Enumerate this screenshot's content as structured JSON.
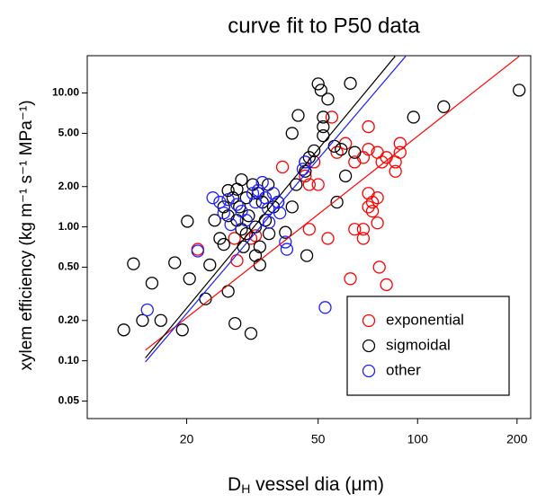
{
  "chart_data": {
    "type": "scatter",
    "title": "curve fit to P50 data",
    "xlabel": [
      "D",
      "H",
      " vessel dia (μm)"
    ],
    "ylabel": "xylem efficiency (kg  m⁻¹  s⁻¹  MPa⁻¹)",
    "xscale": "log",
    "yscale": "log",
    "xlim": [
      10,
      220
    ],
    "ylim": [
      0.037,
      19
    ],
    "xticks": [
      20,
      50,
      100,
      200
    ],
    "yticks": [
      {
        "value": 10,
        "label": "10.00"
      },
      {
        "value": 5,
        "label": "5.00"
      },
      {
        "value": 2,
        "label": "2.00"
      },
      {
        "value": 1,
        "label": "1.00"
      },
      {
        "value": 0.5,
        "label": "0.50"
      },
      {
        "value": 0.2,
        "label": "0.20"
      },
      {
        "value": 0.1,
        "label": "0.10"
      },
      {
        "value": 0.05,
        "label": "0.05"
      }
    ],
    "legend": "lower right",
    "series": [
      {
        "name": "exponential",
        "color": "#ff0000",
        "x": [
          21.6,
          27.9,
          28.4,
          31.3,
          32.3,
          39,
          45.7,
          47,
          47,
          48.6,
          50,
          53.5,
          55,
          57,
          60.5,
          62.6,
          64.5,
          64.5,
          68.5,
          68.5,
          71,
          71,
          71,
          73,
          73,
          75.6,
          75.6,
          75.6,
          78,
          80.5,
          68.5,
          85.7,
          85.7,
          88.5,
          88.5,
          76.6,
          80.5,
          71
        ],
        "values": [
          0.68,
          0.82,
          0.56,
          0.82,
          0.86,
          2.8,
          2.4,
          2.07,
          0.96,
          3.05,
          2.07,
          0.82,
          6.6,
          3.6,
          4.2,
          0.41,
          3.05,
          0.96,
          0.96,
          3.3,
          3.8,
          1.41,
          1.78,
          1.53,
          1.31,
          1.65,
          3.6,
          1.07,
          3.05,
          3.3,
          0.82,
          3.05,
          2.6,
          3.6,
          4.2,
          0.5,
          0.37,
          5.6
        ],
        "fit": {
          "x": [
            15,
            203
          ],
          "y": [
            0.12,
            18.8
          ]
        }
      },
      {
        "name": "sigmoidal",
        "color": "#000000",
        "x": [
          12.9,
          13.8,
          14.7,
          15.7,
          16.7,
          18.4,
          19.4,
          20.1,
          20.4,
          22.8,
          23.5,
          24.3,
          25.2,
          25.9,
          25.9,
          26.7,
          26.7,
          26.7,
          27.6,
          28,
          28.4,
          28.4,
          28.9,
          29.3,
          29.3,
          29.7,
          30.3,
          30.3,
          30.8,
          31.3,
          31.7,
          32.3,
          32.3,
          32.9,
          33.3,
          33.3,
          33.9,
          34.6,
          35.3,
          35.5,
          36.6,
          37.8,
          39.8,
          41.7,
          42.9,
          41.7,
          43.5,
          45.7,
          45.7,
          46.2,
          47,
          48.6,
          50,
          51,
          51.8,
          51.8,
          51.8,
          53.5,
          56,
          57,
          58.7,
          60.5,
          62.6,
          64.5,
          97.2,
          120,
          203
        ],
        "values": [
          0.17,
          0.53,
          0.2,
          0.38,
          0.2,
          0.54,
          0.17,
          1.1,
          0.41,
          0.29,
          0.52,
          1.12,
          0.82,
          0.74,
          1.41,
          1.87,
          1.21,
          0.33,
          1.65,
          0.19,
          1.91,
          1.12,
          1.41,
          2.25,
          0.96,
          0.71,
          1.65,
          0.89,
          1.21,
          0.16,
          2.07,
          1.0,
          0.61,
          1.78,
          0.71,
          0.52,
          1.53,
          1.12,
          2.07,
          0.89,
          1.41,
          1.53,
          0.91,
          1.41,
          2.07,
          5.0,
          6.8,
          3.05,
          2.6,
          0.61,
          3.3,
          3.7,
          11.7,
          10.5,
          6.6,
          5.6,
          4.8,
          9.0,
          4.0,
          1.53,
          3.8,
          2.4,
          11.8,
          3.6,
          6.6,
          7.9,
          10.5
        ],
        "fit": {
          "x": [
            15,
            85.5
          ],
          "y": [
            0.105,
            18.8
          ]
        }
      },
      {
        "name": "other",
        "color": "#1f1fff",
        "x": [
          15.2,
          21.6,
          24,
          25.2,
          25.9,
          26.7,
          27.2,
          28.4,
          29.3,
          31.7,
          32.3,
          32.9,
          33.9,
          34.6,
          35.3,
          35.5,
          36.6,
          37.8,
          38.3,
          39.8,
          40.2,
          45.7,
          45,
          52.5,
          30.3
        ],
        "values": [
          0.24,
          0.66,
          1.65,
          1.53,
          1.27,
          1.6,
          1.04,
          1.47,
          1.31,
          1.78,
          1.53,
          1.87,
          2.15,
          1.65,
          1.37,
          1.08,
          1.78,
          1.53,
          1.27,
          0.77,
          0.68,
          3.05,
          2.7,
          0.25,
          1.12
        ],
        "fit": {
          "x": [
            15,
            92
          ],
          "y": [
            0.098,
            18.8
          ]
        }
      }
    ]
  }
}
